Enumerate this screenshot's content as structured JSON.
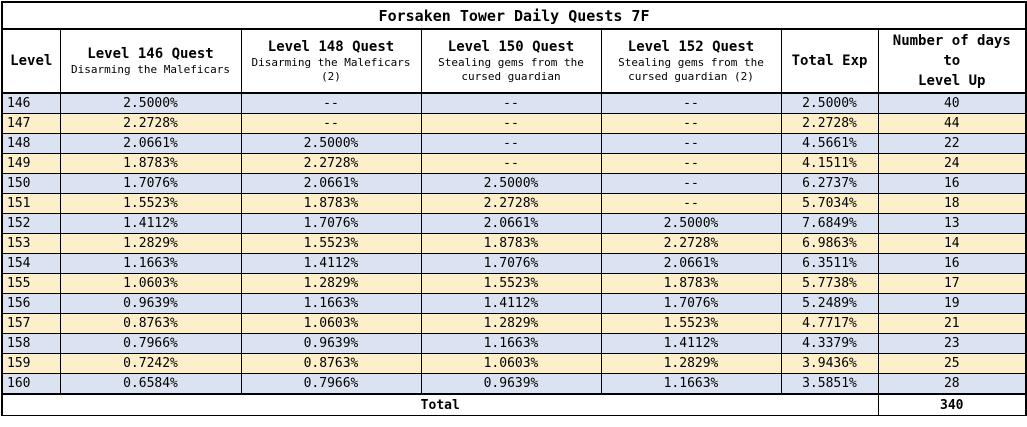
{
  "title": "Forsaken Tower Daily Quests 7F",
  "headers": {
    "level": "Level",
    "q146_title": "Level 146 Quest",
    "q146_sub": "Disarming the Maleficars",
    "q148_title": "Level 148 Quest",
    "q148_sub": "Disarming the Maleficars (2)",
    "q150_title": "Level 150 Quest",
    "q150_sub": "Stealing gems from the cursed guardian",
    "q152_title": "Level 152 Quest",
    "q152_sub": "Stealing gems from the cursed guardian (2)",
    "total_exp": "Total Exp",
    "days_line1": "Number of days",
    "days_line2": "to",
    "days_line3": "Level Up"
  },
  "rows": [
    {
      "level": "146",
      "q146": "2.5000%",
      "q148": "--",
      "q150": "--",
      "q152": "--",
      "total": "2.5000%",
      "days": "40"
    },
    {
      "level": "147",
      "q146": "2.2728%",
      "q148": "--",
      "q150": "--",
      "q152": "--",
      "total": "2.2728%",
      "days": "44"
    },
    {
      "level": "148",
      "q146": "2.0661%",
      "q148": "2.5000%",
      "q150": "--",
      "q152": "--",
      "total": "4.5661%",
      "days": "22"
    },
    {
      "level": "149",
      "q146": "1.8783%",
      "q148": "2.2728%",
      "q150": "--",
      "q152": "--",
      "total": "4.1511%",
      "days": "24"
    },
    {
      "level": "150",
      "q146": "1.7076%",
      "q148": "2.0661%",
      "q150": "2.5000%",
      "q152": "--",
      "total": "6.2737%",
      "days": "16"
    },
    {
      "level": "151",
      "q146": "1.5523%",
      "q148": "1.8783%",
      "q150": "2.2728%",
      "q152": "--",
      "total": "5.7034%",
      "days": "18"
    },
    {
      "level": "152",
      "q146": "1.4112%",
      "q148": "1.7076%",
      "q150": "2.0661%",
      "q152": "2.5000%",
      "total": "7.6849%",
      "days": "13"
    },
    {
      "level": "153",
      "q146": "1.2829%",
      "q148": "1.5523%",
      "q150": "1.8783%",
      "q152": "2.2728%",
      "total": "6.9863%",
      "days": "14"
    },
    {
      "level": "154",
      "q146": "1.1663%",
      "q148": "1.4112%",
      "q150": "1.7076%",
      "q152": "2.0661%",
      "total": "6.3511%",
      "days": "16"
    },
    {
      "level": "155",
      "q146": "1.0603%",
      "q148": "1.2829%",
      "q150": "1.5523%",
      "q152": "1.8783%",
      "total": "5.7738%",
      "days": "17"
    },
    {
      "level": "156",
      "q146": "0.9639%",
      "q148": "1.1663%",
      "q150": "1.4112%",
      "q152": "1.7076%",
      "total": "5.2489%",
      "days": "19"
    },
    {
      "level": "157",
      "q146": "0.8763%",
      "q148": "1.0603%",
      "q150": "1.2829%",
      "q152": "1.5523%",
      "total": "4.7717%",
      "days": "21"
    },
    {
      "level": "158",
      "q146": "0.7966%",
      "q148": "0.9639%",
      "q150": "1.1663%",
      "q152": "1.4112%",
      "total": "4.3379%",
      "days": "23"
    },
    {
      "level": "159",
      "q146": "0.7242%",
      "q148": "0.8763%",
      "q150": "1.0603%",
      "q152": "1.2829%",
      "total": "3.9436%",
      "days": "25"
    },
    {
      "level": "160",
      "q146": "0.6584%",
      "q148": "0.7966%",
      "q150": "0.9639%",
      "q152": "1.1663%",
      "total": "3.5851%",
      "days": "28"
    }
  ],
  "footer": {
    "total_label": "Total",
    "total_days": "340"
  },
  "colors": {
    "row_blue": "#dbe3f2",
    "row_yellow": "#fcefc9",
    "border": "#000000"
  }
}
